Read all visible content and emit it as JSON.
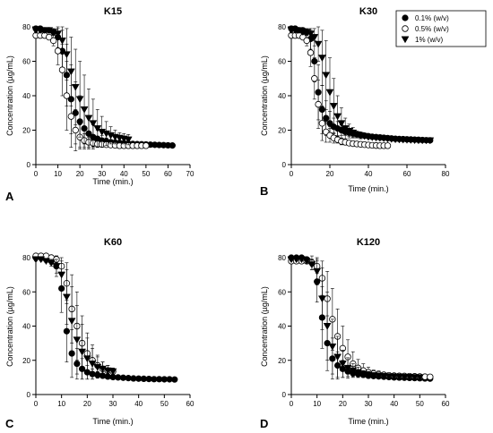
{
  "chart_data": [
    {
      "panel": "A",
      "type": "scatter",
      "title": "K15",
      "xlabel": "Time (min.)",
      "ylabel": "Concentration (µg/mL)",
      "xlim": [
        0,
        70
      ],
      "ylim": [
        0,
        80
      ],
      "xticks": [
        0,
        10,
        20,
        30,
        40,
        50,
        60,
        70
      ],
      "yticks": [
        0,
        20,
        40,
        60,
        80
      ],
      "grid": false,
      "series": [
        {
          "marker": "filled-circle",
          "x": [
            0,
            2,
            4,
            6,
            8,
            10,
            12,
            14,
            16,
            18,
            20,
            22,
            24,
            26,
            28,
            30,
            32,
            34,
            36,
            38,
            40,
            42,
            44,
            46,
            48,
            50,
            52,
            54,
            56,
            58,
            60,
            62
          ],
          "y": [
            79,
            79,
            78,
            78,
            77,
            74,
            66,
            52,
            38,
            30,
            25,
            21,
            18,
            16,
            15,
            14,
            13.5,
            13,
            12.8,
            12.6,
            12.4,
            12.2,
            12,
            11.9,
            11.8,
            11.7,
            11.6,
            11.5,
            11.4,
            11.3,
            11.2,
            11.1
          ],
          "err": [
            1,
            1,
            1,
            1,
            2,
            6,
            12,
            18,
            20,
            18,
            15,
            12,
            9,
            7,
            5,
            3,
            2,
            1.5,
            1,
            1,
            1,
            1,
            1,
            1,
            1,
            1,
            1,
            1,
            1,
            1,
            1,
            1
          ]
        },
        {
          "marker": "open-circle",
          "x": [
            0,
            2,
            4,
            6,
            8,
            10,
            12,
            14,
            16,
            18,
            20,
            22,
            24,
            26,
            28,
            30,
            32,
            34,
            36,
            38,
            40,
            42,
            44,
            46,
            48,
            50
          ],
          "y": [
            75,
            75,
            75,
            74,
            72,
            66,
            55,
            40,
            28,
            20,
            16,
            14,
            13,
            12.5,
            12,
            11.8,
            11.6,
            11.4,
            11.2,
            11,
            11,
            11,
            11,
            11,
            11,
            11
          ],
          "err": [
            1,
            1,
            1,
            1,
            3,
            8,
            15,
            20,
            18,
            12,
            7,
            4,
            3,
            2,
            2,
            1,
            1,
            1,
            1,
            1,
            1,
            1,
            1,
            1,
            1,
            1
          ]
        },
        {
          "marker": "filled-triangle",
          "x": [
            0,
            2,
            4,
            6,
            8,
            10,
            12,
            14,
            16,
            18,
            20,
            22,
            24,
            26,
            28,
            30,
            32,
            34,
            36,
            38,
            40,
            42
          ],
          "y": [
            78,
            78,
            78,
            78,
            77,
            76,
            72,
            64,
            54,
            45,
            38,
            32,
            27,
            24,
            21,
            19,
            18,
            17,
            16,
            15.5,
            15,
            14.5
          ],
          "err": [
            1,
            1,
            1,
            1,
            1,
            3,
            8,
            15,
            20,
            22,
            22,
            20,
            17,
            14,
            11,
            9,
            7,
            5,
            4,
            3,
            3,
            3
          ]
        }
      ]
    },
    {
      "panel": "B",
      "type": "scatter",
      "title": "K30",
      "xlabel": "Time (min.)",
      "ylabel": "Concentration (µg/mL)",
      "xlim": [
        0,
        80
      ],
      "ylim": [
        0,
        80
      ],
      "xticks": [
        0,
        20,
        40,
        60,
        80
      ],
      "yticks": [
        0,
        20,
        40,
        60,
        80
      ],
      "grid": false,
      "legend": {
        "placement": "top-right",
        "entries": [
          {
            "marker": "filled-circle",
            "label": "0.1% (w/v)"
          },
          {
            "marker": "open-circle",
            "label": "0.5% (w/v)"
          },
          {
            "marker": "filled-triangle",
            "label": "1% (w/v)"
          }
        ]
      },
      "series": [
        {
          "marker": "filled-circle",
          "x": [
            0,
            2,
            4,
            6,
            8,
            10,
            12,
            14,
            16,
            18,
            20,
            22,
            24,
            26,
            28,
            30,
            32,
            34,
            36,
            38,
            40,
            42,
            44,
            46,
            48,
            50,
            52,
            54,
            56,
            58,
            60,
            62,
            64,
            66,
            68,
            70,
            72
          ],
          "y": [
            79,
            79,
            78,
            78,
            77,
            73,
            60,
            42,
            32,
            27,
            24,
            22,
            21,
            20,
            19,
            18.5,
            18,
            17.5,
            17,
            16.8,
            16.5,
            16.2,
            16,
            15.8,
            15.6,
            15.4,
            15.2,
            15,
            14.9,
            14.8,
            14.7,
            14.6,
            14.5,
            14.4,
            14.3,
            14.2,
            14.1
          ],
          "err": [
            1,
            1,
            1,
            1,
            2,
            6,
            12,
            16,
            14,
            10,
            7,
            5,
            4,
            3,
            2,
            2,
            2,
            1.5,
            1,
            1,
            1,
            1,
            1,
            1,
            1,
            1,
            1,
            1,
            1,
            1,
            1,
            1,
            1,
            1,
            1,
            1,
            1
          ]
        },
        {
          "marker": "open-circle",
          "x": [
            0,
            2,
            4,
            6,
            8,
            10,
            12,
            14,
            16,
            18,
            20,
            22,
            24,
            26,
            28,
            30,
            32,
            34,
            36,
            38,
            40,
            42,
            44,
            46,
            48,
            50
          ],
          "y": [
            75,
            75,
            75,
            74,
            72,
            65,
            50,
            35,
            24,
            19,
            17,
            15.5,
            14.5,
            13.5,
            13,
            12.5,
            12.2,
            12,
            11.8,
            11.6,
            11.4,
            11.2,
            11.1,
            11,
            11,
            11
          ],
          "err": [
            1,
            1,
            1,
            1,
            3,
            8,
            12,
            14,
            10,
            6,
            4,
            3,
            2,
            2,
            1,
            1,
            1,
            1,
            1,
            1,
            1,
            1,
            1,
            1,
            1,
            1
          ]
        },
        {
          "marker": "filled-triangle",
          "x": [
            0,
            2,
            4,
            6,
            8,
            10,
            12,
            14,
            16,
            18,
            20,
            22,
            24,
            26,
            28,
            30,
            32,
            34,
            36,
            38,
            40,
            42,
            44,
            46,
            48,
            50,
            52,
            54,
            56,
            58,
            60,
            62,
            64,
            66,
            68,
            70,
            72
          ],
          "y": [
            78,
            78,
            78,
            77,
            77,
            76,
            74,
            70,
            62,
            52,
            42,
            34,
            28,
            24,
            21,
            19.5,
            18.5,
            17.5,
            17,
            16.5,
            16,
            15.8,
            15.6,
            15.4,
            15.2,
            15,
            14.8,
            14.6,
            14.5,
            14.4,
            14.3,
            14.2,
            14.1,
            14,
            14,
            14,
            14
          ],
          "err": [
            1,
            1,
            1,
            1,
            1,
            2,
            5,
            10,
            16,
            20,
            20,
            16,
            12,
            9,
            6,
            4,
            3,
            2,
            2,
            1,
            1,
            1,
            1,
            1,
            1,
            1,
            1,
            1,
            1,
            1,
            1,
            1,
            1,
            1,
            1,
            1,
            1
          ]
        }
      ]
    },
    {
      "panel": "C",
      "type": "scatter",
      "title": "K60",
      "xlabel": "Time (min.)",
      "ylabel": "Concentration (µg/mL)",
      "xlim": [
        0,
        60
      ],
      "ylim": [
        0,
        80
      ],
      "xticks": [
        0,
        10,
        20,
        30,
        40,
        50,
        60
      ],
      "yticks": [
        0,
        20,
        40,
        60,
        80
      ],
      "grid": false,
      "series": [
        {
          "marker": "filled-circle",
          "x": [
            0,
            2,
            4,
            6,
            8,
            10,
            12,
            14,
            16,
            18,
            20,
            22,
            24,
            26,
            28,
            30,
            32,
            34,
            36,
            38,
            40,
            42,
            44,
            46,
            48,
            50,
            52,
            54
          ],
          "y": [
            80,
            80,
            79,
            78,
            75,
            62,
            37,
            24,
            18,
            15,
            13,
            12,
            11.5,
            11,
            10.5,
            10.2,
            10,
            9.8,
            9.6,
            9.4,
            9.3,
            9.2,
            9.1,
            9,
            9,
            8.9,
            8.9,
            8.8
          ],
          "err": [
            1,
            1,
            1,
            2,
            6,
            14,
            18,
            14,
            9,
            6,
            4,
            3,
            2,
            1.5,
            1,
            1,
            1,
            1,
            1,
            1,
            1,
            1,
            1,
            1,
            1,
            1,
            1,
            1
          ]
        },
        {
          "marker": "open-circle",
          "x": [
            0,
            2,
            4,
            6,
            8,
            10,
            12,
            14,
            16,
            18,
            20,
            22,
            24,
            26,
            28,
            30
          ],
          "y": [
            81,
            81,
            81,
            80,
            79,
            75,
            65,
            50,
            40,
            30,
            24,
            20,
            17,
            15,
            14,
            13.5
          ],
          "err": [
            1,
            1,
            1,
            1,
            2,
            5,
            12,
            20,
            20,
            16,
            12,
            9,
            6,
            4,
            3,
            2
          ]
        },
        {
          "marker": "filled-triangle",
          "x": [
            0,
            2,
            4,
            6,
            8,
            10,
            12,
            14,
            16,
            18,
            20,
            22,
            24,
            26,
            28,
            30
          ],
          "y": [
            79,
            79,
            78,
            77,
            75,
            70,
            57,
            43,
            32,
            25,
            21,
            18,
            16,
            15,
            14,
            13.5
          ],
          "err": [
            1,
            1,
            1,
            2,
            4,
            8,
            16,
            20,
            20,
            16,
            12,
            9,
            6,
            4,
            3,
            2
          ]
        }
      ]
    },
    {
      "panel": "D",
      "type": "scatter",
      "title": "K120",
      "xlabel": "Time (min.)",
      "ylabel": "Concentration (µg/mL)",
      "xlim": [
        0,
        60
      ],
      "ylim": [
        0,
        80
      ],
      "xticks": [
        0,
        10,
        20,
        30,
        40,
        50,
        60
      ],
      "yticks": [
        0,
        20,
        40,
        60,
        80
      ],
      "grid": false,
      "series": [
        {
          "marker": "filled-circle",
          "x": [
            0,
            2,
            4,
            6,
            8,
            10,
            12,
            14,
            16,
            18,
            20,
            22,
            24,
            26,
            28,
            30,
            32,
            34,
            36,
            38,
            40,
            42,
            44,
            46,
            48,
            50,
            52,
            54
          ],
          "y": [
            80,
            80,
            80,
            79,
            77,
            66,
            45,
            30,
            21,
            17,
            15,
            13.5,
            12.5,
            12,
            11.5,
            11,
            10.8,
            10.6,
            10.4,
            10.2,
            10,
            9.9,
            9.8,
            9.7,
            9.6,
            9.5,
            9.4,
            9.3
          ],
          "err": [
            1,
            1,
            1,
            1,
            4,
            12,
            18,
            16,
            12,
            8,
            5,
            3,
            2,
            2,
            1,
            1,
            1,
            1,
            1,
            1,
            1,
            1,
            1,
            1,
            1,
            1,
            1,
            1
          ]
        },
        {
          "marker": "open-circle",
          "x": [
            0,
            2,
            4,
            6,
            8,
            10,
            12,
            14,
            16,
            18,
            20,
            22,
            24,
            26,
            28,
            30,
            32,
            34,
            36,
            38,
            40,
            42,
            44,
            46,
            48,
            50,
            52,
            54
          ],
          "y": [
            78,
            78,
            78,
            78,
            77,
            75,
            68,
            56,
            44,
            34,
            27,
            22,
            18,
            15.5,
            14,
            13,
            12.3,
            11.8,
            11.5,
            11.2,
            11,
            10.9,
            10.8,
            10.7,
            10.6,
            10.5,
            10.4,
            10.3
          ],
          "err": [
            1,
            1,
            1,
            1,
            2,
            4,
            10,
            16,
            18,
            16,
            13,
            10,
            7,
            5,
            4,
            3,
            2,
            2,
            1,
            1,
            1,
            1,
            1,
            1,
            1,
            1,
            1,
            1
          ]
        },
        {
          "marker": "filled-triangle",
          "x": [
            0,
            2,
            4,
            6,
            8,
            10,
            12,
            14,
            16,
            18,
            20,
            22,
            24,
            26,
            28,
            30,
            32,
            34,
            36,
            38,
            40,
            42,
            44,
            46,
            48,
            50
          ],
          "y": [
            79,
            79,
            79,
            78,
            76,
            72,
            56,
            40,
            28,
            22,
            18,
            15.5,
            14,
            13,
            12,
            11.5,
            11.2,
            11,
            10.8,
            10.6,
            10.5,
            10.4,
            10.3,
            10.2,
            10.1,
            10
          ],
          "err": [
            1,
            1,
            1,
            1,
            3,
            8,
            18,
            20,
            16,
            12,
            8,
            6,
            4,
            3,
            2,
            2,
            1,
            1,
            1,
            1,
            1,
            1,
            1,
            1,
            1,
            1
          ]
        }
      ]
    }
  ]
}
